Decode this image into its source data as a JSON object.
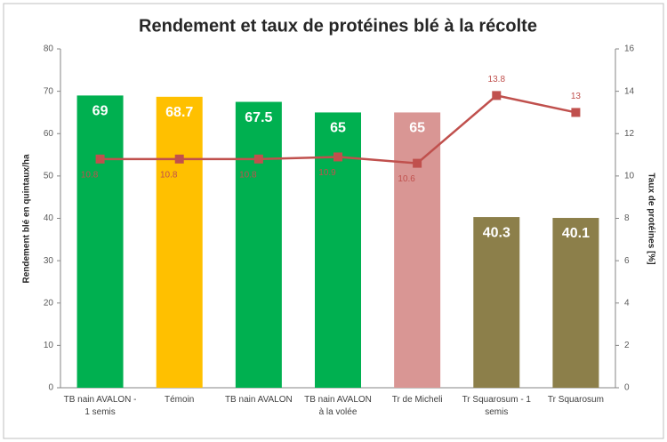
{
  "chart_data": {
    "type": "bar",
    "title": "Rendement et taux de protéines blé à la récolte",
    "ylabel": "Rendement blé en quintaux/ha",
    "y2label": "Taux de protéines [%]",
    "categories": [
      "TB nain AVALON - 1 semis",
      "Témoin",
      "TB nain AVALON",
      "TB nain AVALON à la volée",
      "Tr de Micheli",
      "Tr Squarosum - 1 semis",
      "Tr Squarosum"
    ],
    "series": [
      {
        "type": "bar",
        "colors": [
          "#00b050",
          "#ffc000",
          "#00b050",
          "#00b050",
          "#d99694",
          "#8c7f4a",
          "#8c7f4a"
        ],
        "values": [
          69,
          68.7,
          67.5,
          65,
          65,
          40.3,
          40.1
        ]
      },
      {
        "type": "line",
        "axis": "y2",
        "color": "#c0504d",
        "values": [
          10.8,
          10.8,
          10.8,
          10.9,
          10.6,
          13.8,
          13
        ]
      }
    ],
    "ylim": [
      0,
      80
    ],
    "yticks": [
      0,
      10,
      20,
      30,
      40,
      50,
      60,
      70,
      80
    ],
    "y2lim": [
      0,
      16
    ],
    "y2ticks": [
      0,
      2,
      4,
      6,
      8,
      10,
      12,
      14,
      16
    ],
    "grid": false
  }
}
